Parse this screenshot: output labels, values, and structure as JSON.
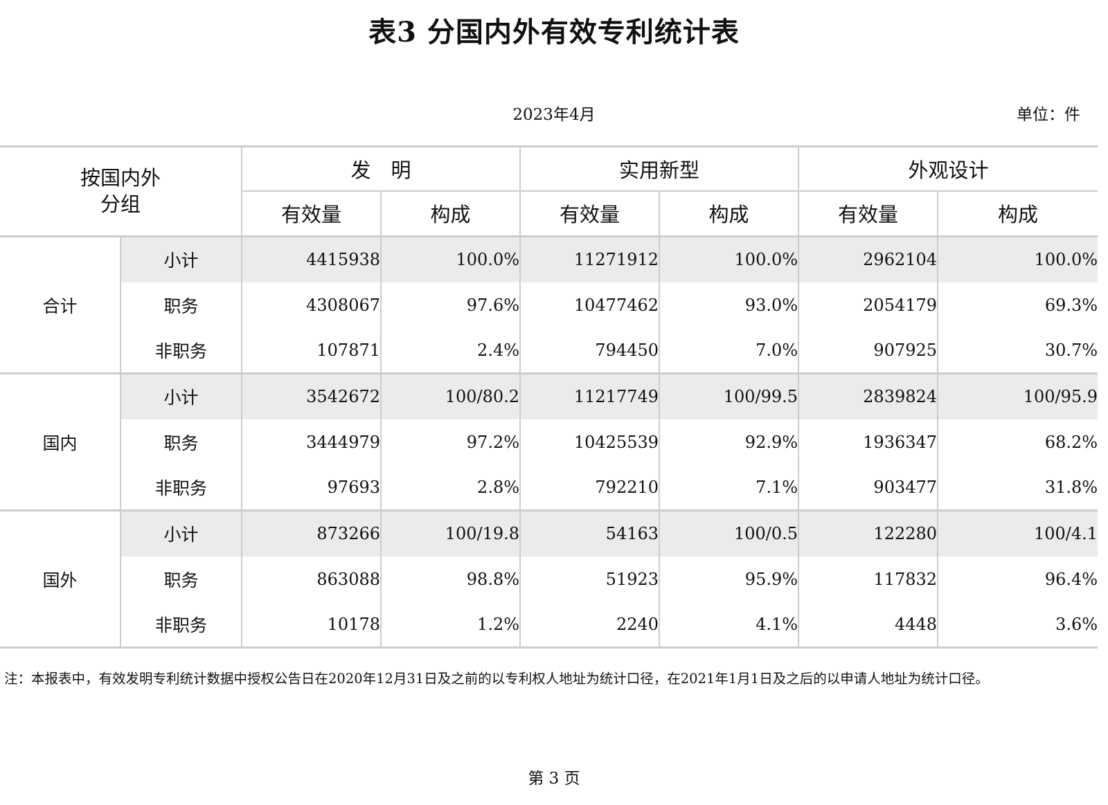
{
  "title": "表3  分国内外有效专利统计表",
  "date": "2023年4月",
  "unit": "单位：件",
  "table": {
    "corner_label": "按国内外\n分组",
    "categories": [
      "发　明",
      "实用新型",
      "外观设计"
    ],
    "sub_headers": [
      "有效量",
      "构成",
      "有效量",
      "构成",
      "有效量",
      "构成"
    ],
    "groups": [
      {
        "name": "合计",
        "rows": [
          {
            "label": "小计",
            "values": [
              "4415938",
              "100.0%",
              "11271912",
              "100.0%",
              "2962104",
              "100.0%"
            ]
          },
          {
            "label": "职务",
            "values": [
              "4308067",
              "97.6%",
              "10477462",
              "93.0%",
              "2054179",
              "69.3%"
            ]
          },
          {
            "label": "非职务",
            "values": [
              "107871",
              "2.4%",
              "794450",
              "7.0%",
              "907925",
              "30.7%"
            ]
          }
        ]
      },
      {
        "name": "国内",
        "rows": [
          {
            "label": "小计",
            "values": [
              "3542672",
              "100/80.2",
              "11217749",
              "100/99.5",
              "2839824",
              "100/95.9"
            ]
          },
          {
            "label": "职务",
            "values": [
              "3444979",
              "97.2%",
              "10425539",
              "92.9%",
              "1936347",
              "68.2%"
            ]
          },
          {
            "label": "非职务",
            "values": [
              "97693",
              "2.8%",
              "792210",
              "7.1%",
              "903477",
              "31.8%"
            ]
          }
        ]
      },
      {
        "name": "国外",
        "rows": [
          {
            "label": "小计",
            "values": [
              "873266",
              "100/19.8",
              "54163",
              "100/0.5",
              "122280",
              "100/4.1"
            ]
          },
          {
            "label": "职务",
            "values": [
              "863088",
              "98.8%",
              "51923",
              "95.9%",
              "117832",
              "96.4%"
            ]
          },
          {
            "label": "非职务",
            "values": [
              "10178",
              "1.2%",
              "2240",
              "4.1%",
              "4448",
              "3.6%"
            ]
          }
        ]
      }
    ]
  },
  "note": "注：本报表中，有效发明专利统计数据中授权公告日在2020年12月31日及之前的以专利权人地址为统计口径，在2021年1月1日及之后的以申请人地址为统计口径。",
  "page_number": "第 3 页"
}
